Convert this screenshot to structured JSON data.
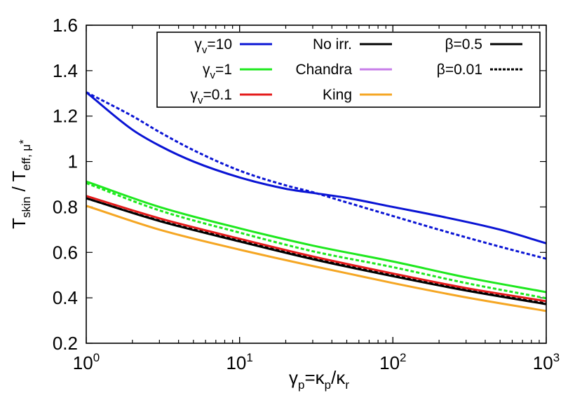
{
  "chart_data": {
    "type": "line",
    "xscale": "log",
    "xlim": [
      1,
      1000
    ],
    "ylim": [
      0.2,
      1.6
    ],
    "xlabel": {
      "base": "γ",
      "base_sub": "p",
      "eq": "=κ",
      "eq_sub": "p",
      "slash": "/κ",
      "slash_sub": "r"
    },
    "ylabel": {
      "t1": "T",
      "t1_sub": "skin",
      "slash": " / T",
      "t2_sub": "eff, μ",
      "t2_star": "*"
    },
    "yticks": [
      {
        "value": 0.2,
        "label": "0.2"
      },
      {
        "value": 0.4,
        "label": "0.4"
      },
      {
        "value": 0.6,
        "label": "0.6"
      },
      {
        "value": 0.8,
        "label": "0.8"
      },
      {
        "value": 1.0,
        "label": "1"
      },
      {
        "value": 1.2,
        "label": "1.2"
      },
      {
        "value": 1.4,
        "label": "1.4"
      },
      {
        "value": 1.6,
        "label": "1.6"
      }
    ],
    "xticks": [
      {
        "value": 1,
        "base": "10",
        "exp": "0"
      },
      {
        "value": 10,
        "base": "10",
        "exp": "1"
      },
      {
        "value": 100,
        "base": "10",
        "exp": "2"
      },
      {
        "value": 1000,
        "base": "10",
        "exp": "3"
      }
    ],
    "colors": {
      "gv10": "#0a14d4",
      "gv1": "#1ee81e",
      "gv01": "#e41a1a",
      "noirr": "#000000",
      "chandra": "#c77ee8",
      "king": "#f5a623"
    },
    "series": [
      {
        "id": "gv10-solid",
        "color": "#0a14d4",
        "dash": "solid",
        "x": [
          1,
          2,
          3,
          5,
          10,
          20,
          30,
          50,
          100,
          200,
          500,
          1000
        ],
        "y": [
          1.305,
          1.14,
          1.07,
          1.0,
          0.93,
          0.88,
          0.862,
          0.84,
          0.8,
          0.76,
          0.7,
          0.64
        ]
      },
      {
        "id": "gv10-dash",
        "color": "#0a14d4",
        "dash": "dash",
        "x": [
          1,
          2,
          3,
          5,
          10,
          20,
          30,
          50,
          100,
          200,
          500,
          1000
        ],
        "y": [
          1.305,
          1.2,
          1.13,
          1.05,
          0.96,
          0.895,
          0.865,
          0.82,
          0.76,
          0.7,
          0.625,
          0.572
        ]
      },
      {
        "id": "gv1-solid",
        "color": "#1ee81e",
        "dash": "solid",
        "x": [
          1,
          3,
          10,
          30,
          100,
          300,
          1000
        ],
        "y": [
          0.912,
          0.8,
          0.706,
          0.63,
          0.56,
          0.49,
          0.425
        ]
      },
      {
        "id": "gv1-dash",
        "color": "#1ee81e",
        "dash": "dash",
        "x": [
          1,
          3,
          10,
          30,
          100,
          300,
          1000
        ],
        "y": [
          0.905,
          0.785,
          0.687,
          0.605,
          0.535,
          0.465,
          0.398
        ]
      },
      {
        "id": "noirr-dash",
        "color": "#000000",
        "dash": "dash",
        "x": [
          1,
          3,
          10,
          30,
          100,
          300,
          1000
        ],
        "y": [
          0.838,
          0.74,
          0.652,
          0.575,
          0.5,
          0.435,
          0.375
        ]
      },
      {
        "id": "gv01-solid",
        "color": "#e41a1a",
        "dash": "solid",
        "x": [
          1,
          3,
          10,
          30,
          100,
          300,
          1000
        ],
        "y": [
          0.848,
          0.75,
          0.66,
          0.582,
          0.507,
          0.443,
          0.385
        ]
      },
      {
        "id": "noirr-solid",
        "color": "#000000",
        "dash": "solid",
        "x": [
          1,
          3,
          10,
          30,
          100,
          300,
          1000
        ],
        "y": [
          0.838,
          0.738,
          0.648,
          0.57,
          0.495,
          0.432,
          0.372
        ]
      },
      {
        "id": "king-solid",
        "color": "#f5a623",
        "dash": "solid",
        "x": [
          1,
          3,
          10,
          30,
          100,
          300,
          1000
        ],
        "y": [
          0.805,
          0.7,
          0.612,
          0.54,
          0.465,
          0.402,
          0.342
        ]
      }
    ],
    "legend": {
      "placement": "top-right",
      "entries": [
        {
          "col": 0,
          "row": 0,
          "label": "γ",
          "sub": "v",
          "rest": "=10",
          "color": "#0a14d4",
          "dash": "solid"
        },
        {
          "col": 0,
          "row": 1,
          "label": "γ",
          "sub": "v",
          "rest": "=1",
          "color": "#1ee81e",
          "dash": "solid"
        },
        {
          "col": 0,
          "row": 2,
          "label": "γ",
          "sub": "v",
          "rest": "=0.1",
          "color": "#e41a1a",
          "dash": "solid"
        },
        {
          "col": 1,
          "row": 0,
          "label": "No irr.",
          "sub": "",
          "rest": "",
          "color": "#000000",
          "dash": "solid"
        },
        {
          "col": 1,
          "row": 1,
          "label": "Chandra",
          "sub": "",
          "rest": "",
          "color": "#c77ee8",
          "dash": "solid"
        },
        {
          "col": 1,
          "row": 2,
          "label": "King",
          "sub": "",
          "rest": "",
          "color": "#f5a623",
          "dash": "solid"
        },
        {
          "col": 2,
          "row": 0,
          "label": "β=0.5",
          "sub": "",
          "rest": "",
          "color": "#000000",
          "dash": "solid"
        },
        {
          "col": 2,
          "row": 1,
          "label": "β=0.01",
          "sub": "",
          "rest": "",
          "color": "#000000",
          "dash": "dash"
        }
      ]
    }
  }
}
